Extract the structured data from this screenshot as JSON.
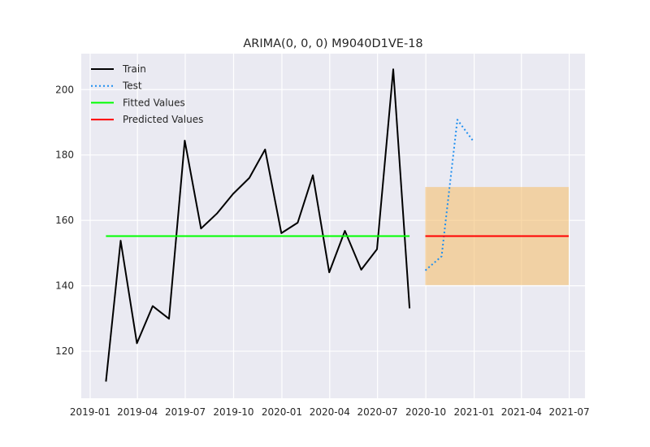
{
  "chart_data": {
    "type": "line",
    "title": "ARIMA(0, 0, 0) M9040D1VE-18",
    "xlabel": "",
    "ylabel": "",
    "x_ticks": [
      "2019-01",
      "2019-04",
      "2019-07",
      "2019-10",
      "2020-01",
      "2020-04",
      "2020-07",
      "2020-10",
      "2021-01",
      "2021-04",
      "2021-07"
    ],
    "y_ticks": [
      120,
      140,
      160,
      180,
      200
    ],
    "xlim": [
      "2018-12-15",
      "2021-07-31"
    ],
    "ylim": [
      105.6,
      211.0
    ],
    "grid": true,
    "legend_position": "top-left",
    "series": [
      {
        "name": "Train",
        "color": "#000000",
        "style": "solid",
        "x": [
          "2019-01-31",
          "2019-02-28",
          "2019-03-31",
          "2019-04-30",
          "2019-05-31",
          "2019-06-30",
          "2019-07-31",
          "2019-08-31",
          "2019-09-30",
          "2019-10-31",
          "2019-11-30",
          "2019-12-31",
          "2020-01-31",
          "2020-02-29",
          "2020-03-31",
          "2020-04-30",
          "2020-05-31",
          "2020-06-30",
          "2020-07-31",
          "2020-08-31"
        ],
        "values": [
          110.7,
          153.8,
          122.4,
          133.8,
          129.9,
          184.4,
          157.5,
          162.2,
          168.1,
          173.0,
          181.7,
          156.1,
          159.3,
          173.8,
          144.1,
          156.8,
          144.9,
          151.2,
          206.2,
          133.1
        ]
      },
      {
        "name": "Test",
        "color": "#1f8fef",
        "style": "dotted",
        "x": [
          "2020-09-30",
          "2020-10-31",
          "2020-11-30",
          "2020-12-31"
        ],
        "values": [
          144.7,
          149.0,
          190.8,
          184.1
        ]
      },
      {
        "name": "Fitted Values",
        "color": "#00ff00",
        "style": "solid",
        "x": [
          "2019-01-31",
          "2020-08-31"
        ],
        "values": [
          155.2,
          155.2
        ]
      },
      {
        "name": "Predicted Values",
        "color": "#ff0000",
        "style": "solid",
        "x": [
          "2020-09-30",
          "2021-06-30"
        ],
        "values": [
          155.2,
          155.2
        ]
      }
    ],
    "confidence_band": {
      "color": "#f5bf70",
      "x": [
        "2020-09-30",
        "2021-06-30"
      ],
      "lower": 140.2,
      "upper": 170.2
    }
  }
}
